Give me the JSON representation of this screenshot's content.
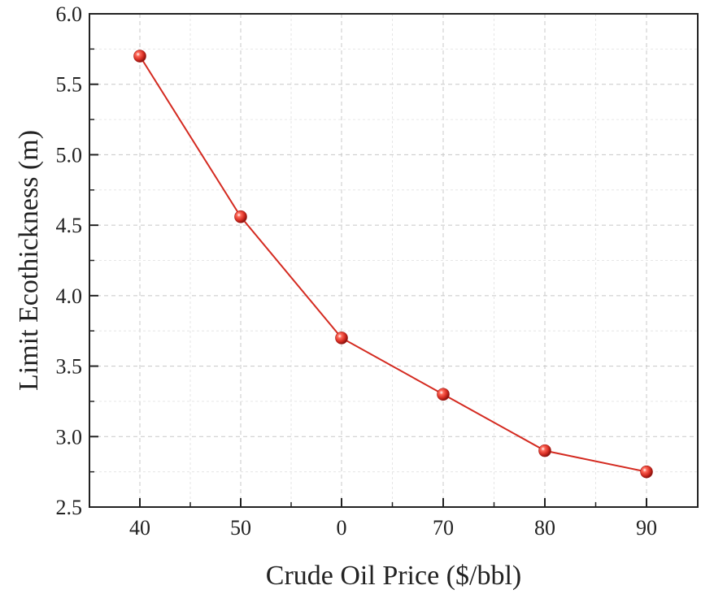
{
  "chart_data": {
    "type": "line",
    "title": "",
    "xlabel": "Crude Oil Price ($/bbl)",
    "ylabel": "Limit Ecothickness (m)",
    "categories": [
      "40",
      "50",
      "0",
      "70",
      "80",
      "90"
    ],
    "series": [
      {
        "values": [
          5.7,
          4.56,
          3.7,
          3.3,
          2.9,
          2.75
        ]
      }
    ],
    "ylim": [
      2.5,
      6.0
    ],
    "yticks": [
      "2.5",
      "3.0",
      "3.5",
      "4.0",
      "4.5",
      "5.0",
      "5.5",
      "6.0"
    ],
    "grid": true,
    "colors": {
      "line": "#d42a20",
      "marker": "#d42a20",
      "grid": "#c8c8c8",
      "axis": "#222222"
    }
  }
}
